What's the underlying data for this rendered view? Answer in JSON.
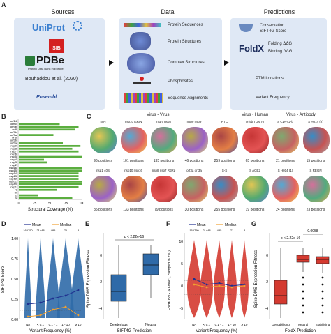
{
  "panelA": {
    "letter": "A",
    "sources_title": "Sources",
    "data_title": "Data",
    "predictions_title": "Predictions",
    "sources": {
      "uniprot": "UniProt",
      "sib": "SIB",
      "pdbe": "PDBe",
      "pdbe_sub": "Protein Data Bank in Europe",
      "bouhaddou": "Bouhaddou et al. (2020)",
      "ensembl": "Ensembl"
    },
    "data_items": [
      "Protein Sequences",
      "Protein Structures",
      "Complex Structures",
      "Phosphosites",
      "Sequence Alignments"
    ],
    "predictions": {
      "conservation": "Conservation",
      "sift": "SIFT4G Score",
      "foldx": "FoldX",
      "folding": "Folding ΔΔG",
      "binding": "Binding ΔΔG",
      "ptm": "PTM Locations",
      "variant": "Variant Frequency"
    }
  },
  "panelB": {
    "letter": "B",
    "xlabel": "Structural Coverage (%)",
    "xticks": [
      "0",
      "25",
      "50",
      "75",
      "100"
    ],
    "labels": [
      "orf14",
      "orf9c",
      "orf9b",
      "orf8",
      "orf7b",
      "orf7a",
      "orf6",
      "orf3b",
      "orf3a",
      "nsp9",
      "nsp8",
      "nsp7",
      "nsp6",
      "nsp5",
      "nsp4",
      "nsp3",
      "nsp2",
      "nsp16",
      "nsp15",
      "nsp14",
      "nsp13",
      "nsp12",
      "nsp11",
      "nsp10",
      "nsp1",
      "N",
      "M",
      "E",
      "S"
    ],
    "values": [
      0,
      65,
      95,
      90,
      0,
      55,
      0,
      0,
      70,
      98,
      85,
      95,
      0,
      100,
      40,
      45,
      0,
      100,
      100,
      95,
      95,
      95,
      100,
      100,
      95,
      60,
      0,
      30,
      85
    ]
  },
  "panelC": {
    "letter": "C",
    "groups": [
      "Virus - Virus",
      "Virus - Human",
      "Virus - Antibody"
    ],
    "row1": [
      {
        "name": "N-N",
        "positions": "96 positions"
      },
      {
        "name": "nsp10 ExoN",
        "positions": "101 positions"
      },
      {
        "name": "nsp7 nsp8",
        "positions": "135 positions"
      },
      {
        "name": "nsp9 nsp9",
        "positions": "46 positions"
      },
      {
        "name": "RTC",
        "positions": "259 positions"
      },
      {
        "name": "orf9b TOM70",
        "positions": "65 positions"
      },
      {
        "name": "S CDV42-b",
        "positions": "21 positions"
      },
      {
        "name": "S H014 (2)",
        "positions": "15 positions"
      }
    ],
    "row2": [
      {
        "name": "nsp1 40S",
        "positions": "35 positions"
      },
      {
        "name": "nsp10 nsp16",
        "positions": "133 positions"
      },
      {
        "name": "nsp8 nsp7 RdRp",
        "positions": "79 positions"
      },
      {
        "name": "orf3a orf3a",
        "positions": "30 positions"
      },
      {
        "name": "S-S",
        "positions": "255 positions"
      },
      {
        "name": "S ACE2",
        "positions": "19 positions"
      },
      {
        "name": "S H014 (1)",
        "positions": "24 positions"
      },
      {
        "name": "S REGN",
        "positions": "23 positions"
      }
    ]
  },
  "panelD": {
    "letter": "D",
    "ylabel": "SIFT4G Score",
    "xlabel": "Variant Frequency (%)",
    "legend": [
      "Mean",
      "Median"
    ],
    "counts": [
      "165750",
      "21448",
      "485",
      "71",
      "8"
    ],
    "xticks": [
      "NA",
      "< 0.1",
      "0.1 - 1",
      "1 - 10",
      "≥ 10"
    ],
    "yticks": [
      "0.00",
      "0.25",
      "0.50",
      "0.75",
      "1.00"
    ]
  },
  "panelE": {
    "letter": "E",
    "ylabel": "Spike DMS Expression Fitness",
    "xlabel": "SIFT4G Prediction",
    "xticks": [
      "Deleterious",
      "Neutral"
    ],
    "pvalue": "p < 2.22e-16",
    "yticks": [
      "0",
      "-2",
      "-4"
    ]
  },
  "panelF": {
    "letter": "F",
    "ylabel": "FoldX ΔΔG (kJ·mol⁻¹, clamped to ±10)",
    "xlabel": "Variant Frequency (%)",
    "legend": [
      "Mean",
      "Median"
    ],
    "counts": [
      "165750",
      "21448",
      "485",
      "71",
      "8"
    ],
    "xticks": [
      "NA",
      "< 0.1",
      "0.1 - 1",
      "1 - 10",
      "≥ 10"
    ],
    "yticks": [
      "10",
      "5",
      "0",
      "-5"
    ]
  },
  "panelG": {
    "letter": "G",
    "ylabel": "Spike DMS Expression Fitness",
    "xlabel": "FoldX Prediction",
    "xticks": [
      "Destabilising",
      "Neutral",
      "Stabilising"
    ],
    "pvalue1": "p < 2.22e-16",
    "pvalue2": "0.0058",
    "yticks": [
      "0",
      "-2",
      "-4"
    ]
  },
  "colors": {
    "box_bg": "#dfe8f5",
    "green": "#5bae3f",
    "blue": "#2f6aa8",
    "red": "#d43a30",
    "orange": "#f0a030",
    "navy": "#1f2f8f"
  }
}
